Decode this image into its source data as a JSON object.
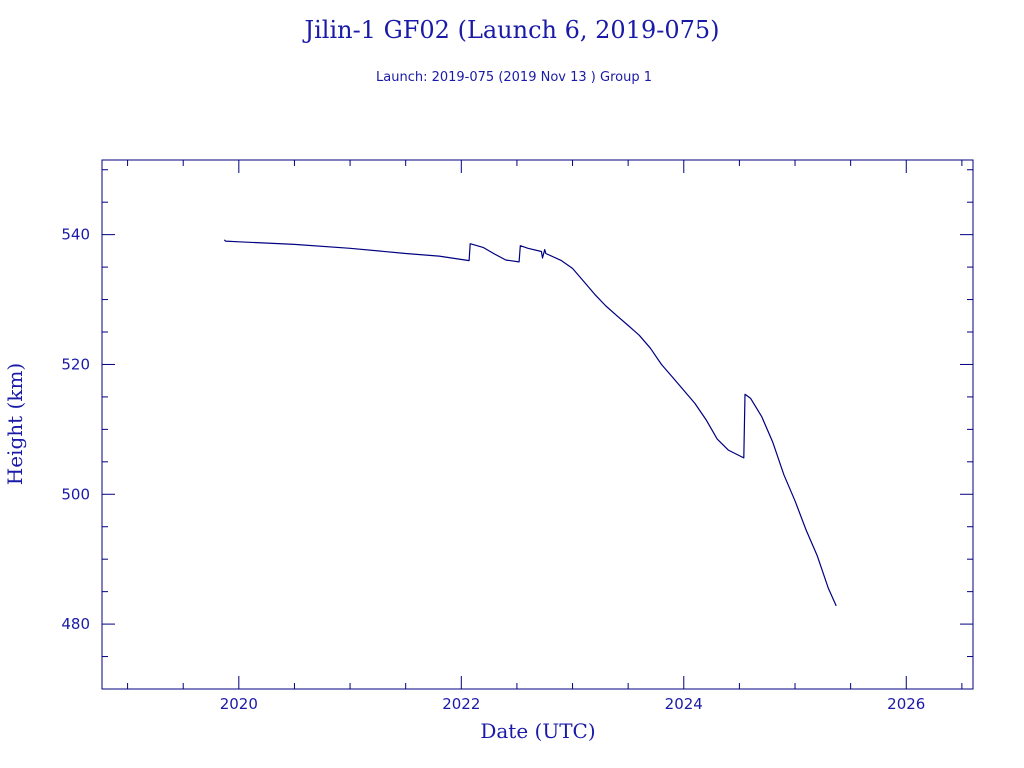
{
  "chart_data": {
    "type": "line",
    "title": "Jilin-1 GF02 (Launch 6, 2019-075)",
    "subtitle": "Launch: 2019-075  (2019 Nov 13 )  Group 1",
    "xlabel": "Date (UTC)",
    "ylabel": "Height (km)",
    "x_ticks": [
      "2020",
      "2022",
      "2024",
      "2026"
    ],
    "y_ticks": [
      "480",
      "500",
      "520",
      "540"
    ],
    "xlim": [
      2018.77,
      2026.6
    ],
    "ylim": [
      470,
      551.5
    ],
    "grid": false,
    "colors": {
      "text": "#1a1aa8",
      "axes": "#000080",
      "series": "#000080"
    },
    "series": [
      {
        "x": [
          2019.87,
          2019.88,
          2020.0,
          2020.5,
          2021.0,
          2021.5,
          2021.8,
          2022.07,
          2022.08,
          2022.2,
          2022.3,
          2022.4,
          2022.52,
          2022.53,
          2022.6,
          2022.72,
          2022.73,
          2022.75,
          2022.76,
          2022.9,
          2023.0,
          2023.1,
          2023.2,
          2023.3,
          2023.4,
          2023.5,
          2023.6,
          2023.7,
          2023.8,
          2023.9,
          2024.0,
          2024.1,
          2024.2,
          2024.3,
          2024.4,
          2024.54,
          2024.55,
          2024.6,
          2024.7,
          2024.8,
          2024.9,
          2025.0,
          2025.1,
          2025.2,
          2025.3,
          2025.37
        ],
        "y": [
          539.2,
          539.0,
          538.9,
          538.5,
          537.9,
          537.1,
          536.7,
          536.0,
          538.6,
          538.0,
          537.0,
          536.1,
          535.8,
          538.3,
          537.9,
          537.4,
          536.4,
          537.7,
          537.1,
          536.0,
          534.8,
          532.8,
          530.8,
          529.0,
          527.5,
          526.0,
          524.5,
          522.5,
          520.0,
          518.0,
          516.0,
          514.0,
          511.5,
          508.5,
          506.8,
          505.6,
          515.4,
          514.8,
          512.0,
          508.0,
          503.0,
          499.0,
          494.5,
          490.5,
          485.5,
          482.8
        ]
      }
    ]
  }
}
